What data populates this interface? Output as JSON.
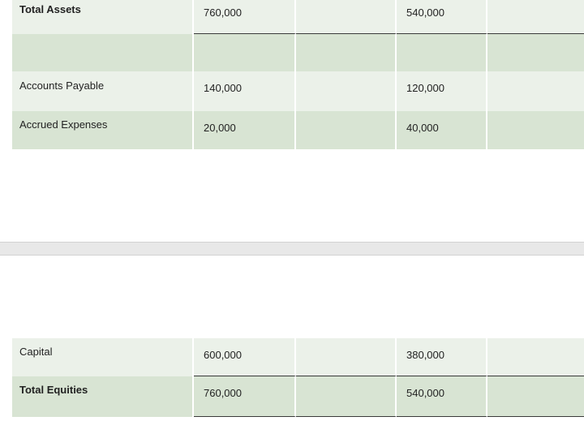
{
  "top_section": {
    "rows": [
      {
        "label": "Total Assets",
        "bold": true,
        "col1": "760,000",
        "col2": "",
        "col3": "540,000",
        "col4": ""
      },
      {
        "label": "",
        "bold": false,
        "col1": "",
        "col2": "",
        "col3": "",
        "col4": ""
      },
      {
        "label": "Accounts Payable",
        "bold": false,
        "col1": "140,000",
        "col2": "",
        "col3": "120,000",
        "col4": ""
      },
      {
        "label": "Accrued Expenses",
        "bold": false,
        "col1": "20,000",
        "col2": "",
        "col3": "40,000",
        "col4": ""
      }
    ]
  },
  "bottom_section": {
    "rows": [
      {
        "label": "Capital",
        "bold": false,
        "col1": "600,000",
        "col2": "",
        "col3": "380,000",
        "col4": ""
      },
      {
        "label": "Total Equities",
        "bold": true,
        "col1": "760,000",
        "col2": "",
        "col3": "540,000",
        "col4": ""
      }
    ]
  },
  "colors": {
    "row_light": "#ebf1e9",
    "row_dark": "#d8e4d3",
    "separator_band": "#e8e8e8"
  }
}
